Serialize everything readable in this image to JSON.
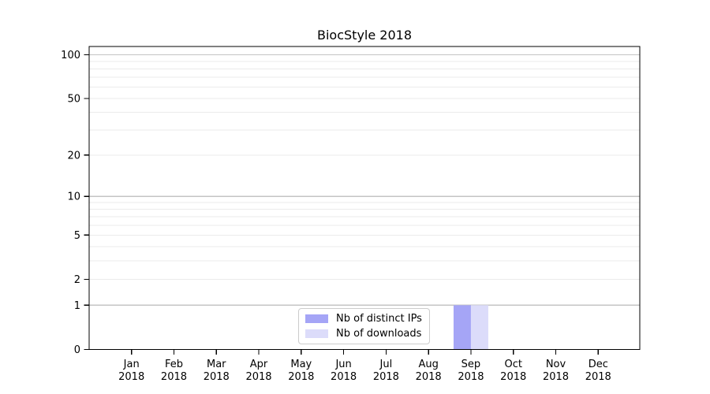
{
  "figure": {
    "title": "BiocStyle 2018"
  },
  "chart_data": {
    "type": "bar",
    "title": "BiocStyle 2018",
    "categories": [
      "Jan",
      "Feb",
      "Mar",
      "Apr",
      "May",
      "Jun",
      "Jul",
      "Aug",
      "Sep",
      "Oct",
      "Nov",
      "Dec"
    ],
    "x_tick_year": "2018",
    "series": [
      {
        "name": "Nb of distinct IPs",
        "color": "#a5a5f6",
        "values": [
          0,
          0,
          0,
          0,
          0,
          0,
          0,
          0,
          1,
          0,
          0,
          0
        ]
      },
      {
        "name": "Nb of downloads",
        "color": "#dcdcfa",
        "values": [
          0,
          0,
          0,
          0,
          0,
          0,
          0,
          0,
          1,
          0,
          0,
          0
        ]
      }
    ],
    "yscale": "log1p",
    "ylim": [
      0,
      115
    ],
    "yticks": [
      0,
      1,
      2,
      5,
      10,
      20,
      50,
      100
    ],
    "major_grid_values": [
      1,
      10,
      100
    ],
    "minor_grid_values": [
      2,
      3,
      4,
      5,
      6,
      7,
      8,
      9,
      20,
      30,
      40,
      50,
      60,
      70,
      80,
      90
    ],
    "grid": true,
    "legend_position": "lower center inside"
  },
  "colors": {
    "background": "#ffffff",
    "axis": "#000000",
    "tick_label": "#000000",
    "major_grid": "#c4c4c4",
    "minor_grid": "#ebebeb",
    "legend_border": "#cccccc"
  }
}
